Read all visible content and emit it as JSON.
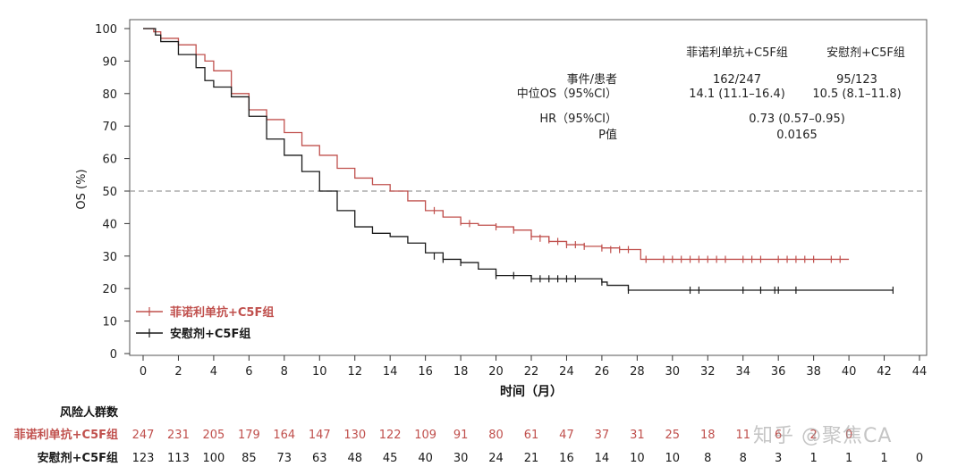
{
  "chart_data": {
    "type": "line",
    "subtype": "kaplan-meier",
    "xlabel": "时间（月）",
    "ylabel": "OS (%)",
    "xlim": [
      0,
      44
    ],
    "ylim": [
      0,
      100
    ],
    "xticks": [
      0,
      2,
      4,
      6,
      8,
      10,
      12,
      14,
      16,
      18,
      20,
      22,
      24,
      26,
      28,
      30,
      32,
      34,
      36,
      38,
      40,
      42,
      44
    ],
    "yticks": [
      0,
      10,
      20,
      30,
      40,
      50,
      60,
      70,
      80,
      90,
      100
    ],
    "reference_line": {
      "y": 50,
      "style": "dashed"
    },
    "colors": {
      "treatment": "#c0504d",
      "control": "#1a1a1a",
      "reference": "#9a9a9a"
    },
    "series": [
      {
        "name": "菲诺利单抗+C5F组",
        "color": "#c0504d",
        "points": [
          [
            0,
            100
          ],
          [
            0.3,
            100
          ],
          [
            0.6,
            99
          ],
          [
            1,
            97
          ],
          [
            2,
            95
          ],
          [
            3,
            92
          ],
          [
            3.5,
            90
          ],
          [
            4,
            87
          ],
          [
            5,
            80
          ],
          [
            6,
            75
          ],
          [
            7,
            72
          ],
          [
            8,
            68
          ],
          [
            9,
            64
          ],
          [
            10,
            61
          ],
          [
            11,
            57
          ],
          [
            12,
            54
          ],
          [
            13,
            52
          ],
          [
            14,
            50
          ],
          [
            15,
            47
          ],
          [
            16,
            44
          ],
          [
            17,
            42
          ],
          [
            18,
            40
          ],
          [
            19,
            39.5
          ],
          [
            20,
            39
          ],
          [
            21,
            38
          ],
          [
            22,
            36
          ],
          [
            23,
            34.5
          ],
          [
            24,
            33.5
          ],
          [
            25,
            33
          ],
          [
            26,
            32.5
          ],
          [
            27,
            32
          ],
          [
            28,
            32
          ],
          [
            28.2,
            29
          ],
          [
            40,
            29
          ]
        ],
        "censors": [
          [
            16.5,
            44
          ],
          [
            17,
            43
          ],
          [
            18,
            40.5
          ],
          [
            18.5,
            40
          ],
          [
            20,
            39
          ],
          [
            21,
            38
          ],
          [
            22,
            36
          ],
          [
            22.5,
            35.5
          ],
          [
            23,
            35
          ],
          [
            23.5,
            34.5
          ],
          [
            24,
            33.5
          ],
          [
            24.5,
            33.5
          ],
          [
            25,
            33
          ],
          [
            26,
            32.5
          ],
          [
            26.5,
            32
          ],
          [
            27,
            32
          ],
          [
            27.5,
            32
          ],
          [
            28.5,
            29
          ],
          [
            29.5,
            29
          ],
          [
            30,
            29
          ],
          [
            30.5,
            29
          ],
          [
            31,
            29
          ],
          [
            31.5,
            29
          ],
          [
            32,
            29
          ],
          [
            32.5,
            29
          ],
          [
            33,
            29
          ],
          [
            34,
            29
          ],
          [
            34.5,
            29
          ],
          [
            35,
            29
          ],
          [
            36,
            29
          ],
          [
            36.5,
            29
          ],
          [
            37,
            29
          ],
          [
            37.5,
            29
          ],
          [
            38,
            29
          ],
          [
            39,
            29
          ],
          [
            39.5,
            29
          ]
        ],
        "risk": [
          247,
          231,
          205,
          179,
          164,
          147,
          130,
          122,
          109,
          91,
          80,
          61,
          47,
          37,
          31,
          25,
          18,
          11,
          6,
          2,
          0
        ]
      },
      {
        "name": "安慰剂+C5F组",
        "color": "#1a1a1a",
        "points": [
          [
            0,
            100
          ],
          [
            0.3,
            100
          ],
          [
            0.7,
            98
          ],
          [
            1,
            96
          ],
          [
            2,
            92
          ],
          [
            3,
            88
          ],
          [
            3.5,
            84
          ],
          [
            4,
            82
          ],
          [
            5,
            79
          ],
          [
            6,
            73
          ],
          [
            7,
            66
          ],
          [
            8,
            61
          ],
          [
            9,
            56
          ],
          [
            10,
            50
          ],
          [
            11,
            44
          ],
          [
            12,
            39
          ],
          [
            13,
            37
          ],
          [
            14,
            36
          ],
          [
            15,
            34
          ],
          [
            16,
            31
          ],
          [
            17,
            29
          ],
          [
            18,
            28
          ],
          [
            19,
            26
          ],
          [
            20,
            24
          ],
          [
            21,
            24
          ],
          [
            22,
            23
          ],
          [
            24,
            23
          ],
          [
            26,
            22
          ],
          [
            26.3,
            21
          ],
          [
            27,
            21
          ],
          [
            27.5,
            19.5
          ],
          [
            42.5,
            19.5
          ]
        ],
        "censors": [
          [
            16.5,
            30
          ],
          [
            17,
            29
          ],
          [
            18,
            28
          ],
          [
            20,
            24
          ],
          [
            21,
            24
          ],
          [
            22,
            23
          ],
          [
            22.5,
            23
          ],
          [
            23,
            23
          ],
          [
            23.5,
            23
          ],
          [
            24,
            23
          ],
          [
            24.5,
            23
          ],
          [
            26,
            22
          ],
          [
            27.5,
            19.5
          ],
          [
            31,
            19.5
          ],
          [
            31.5,
            19.5
          ],
          [
            34,
            19.5
          ],
          [
            35,
            19.5
          ],
          [
            35.8,
            19.5
          ],
          [
            36,
            19.5
          ],
          [
            37,
            19.5
          ],
          [
            42.5,
            19.5
          ]
        ],
        "risk": [
          123,
          113,
          100,
          85,
          73,
          63,
          48,
          45,
          40,
          30,
          24,
          21,
          16,
          14,
          10,
          10,
          8,
          8,
          3,
          1,
          1,
          1,
          0
        ]
      }
    ],
    "legend": {
      "placement": "bottom-left",
      "items": [
        "菲诺利单抗+C5F组",
        "安慰剂+C5F组"
      ]
    },
    "stats_table": {
      "columns": [
        "菲诺利单抗+C5F组",
        "安慰剂+C5F组"
      ],
      "rows": [
        {
          "label": "事件/患者",
          "values": [
            "162/247",
            "95/123"
          ]
        },
        {
          "label": "中位OS（95%CI）",
          "values": [
            "14.1 (11.1–16.4)",
            "10.5 (8.1–11.8)"
          ]
        },
        {
          "label": "HR（95%CI）",
          "values": [
            "0.73 (0.57–0.95)"
          ]
        },
        {
          "label": "P值",
          "values": [
            "0.0165"
          ]
        }
      ]
    },
    "risk_table": {
      "title": "风险人群数",
      "rows": [
        {
          "label": "菲诺利单抗+C5F组",
          "color": "#c0504d",
          "values": [
            247,
            231,
            205,
            179,
            164,
            147,
            130,
            122,
            109,
            91,
            80,
            61,
            47,
            37,
            31,
            25,
            18,
            11,
            6,
            2,
            0
          ]
        },
        {
          "label": "安慰剂+C5F组",
          "color": "#1a1a1a",
          "values": [
            123,
            113,
            100,
            85,
            73,
            63,
            48,
            45,
            40,
            30,
            24,
            21,
            16,
            14,
            10,
            10,
            8,
            8,
            3,
            1,
            1,
            1,
            0
          ]
        }
      ]
    }
  },
  "watermark": "知乎 @聚焦CA"
}
